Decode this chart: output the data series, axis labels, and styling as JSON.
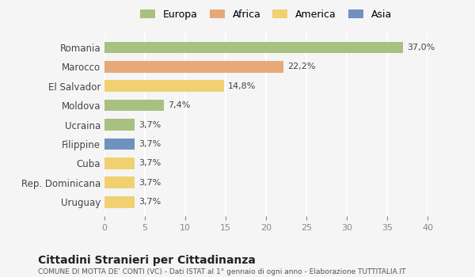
{
  "categories": [
    "Romania",
    "Marocco",
    "El Salvador",
    "Moldova",
    "Ucraina",
    "Filippine",
    "Cuba",
    "Rep. Dominicana",
    "Uruguay"
  ],
  "values": [
    37.0,
    22.2,
    14.8,
    7.4,
    3.7,
    3.7,
    3.7,
    3.7,
    3.7
  ],
  "labels": [
    "37,0%",
    "22,2%",
    "14,8%",
    "7,4%",
    "3,7%",
    "3,7%",
    "3,7%",
    "3,7%",
    "3,7%"
  ],
  "colors": [
    "#a8c080",
    "#e8a878",
    "#f0d070",
    "#a8c080",
    "#a8c080",
    "#7090c0",
    "#f0d070",
    "#f0d070",
    "#f0d070"
  ],
  "continent_colors": {
    "Europa": "#a8c080",
    "Africa": "#e8a878",
    "America": "#f0d070",
    "Asia": "#7090c0"
  },
  "legend_labels": [
    "Europa",
    "Africa",
    "America",
    "Asia"
  ],
  "xlim": [
    0,
    40
  ],
  "xticks": [
    0,
    5,
    10,
    15,
    20,
    25,
    30,
    35,
    40
  ],
  "title": "Cittadini Stranieri per Cittadinanza",
  "subtitle": "COMUNE DI MOTTA DE' CONTI (VC) - Dati ISTAT al 1° gennaio di ogni anno - Elaborazione TUTTITALIA.IT",
  "background_color": "#f5f5f5",
  "grid_color": "#ffffff",
  "bar_height": 0.6
}
